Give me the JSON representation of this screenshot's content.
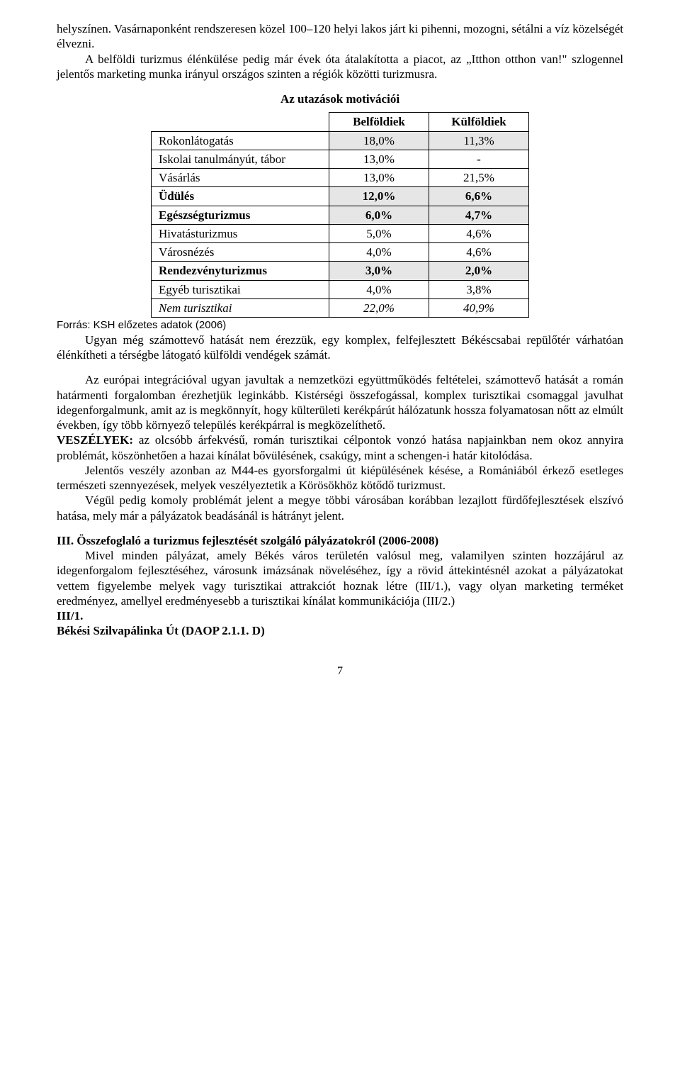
{
  "para1": "helyszínen. Vasárnaponként rendszeresen közel 100–120 helyi lakos járt ki pihenni, mozogni, sétálni a víz közelségét élvezni.",
  "para2": "A belföldi turizmus élénkülése pedig már évek óta átalakította a piacot, az „Itthon otthon van!\" szlogennel jelentős marketing munka irányul országos szinten a régiók közötti turizmusra.",
  "table": {
    "title": "Az utazások motivációi",
    "headers": {
      "col1": "Belföldiek",
      "col2": "Külföldiek"
    },
    "rows": [
      {
        "label": "Rokonlátogatás",
        "v1": "18,0%",
        "v2": "11,3%",
        "shade": true,
        "bold": false,
        "italic": false
      },
      {
        "label": "Iskolai tanulmányút, tábor",
        "v1": "13,0%",
        "v2": "-",
        "shade": false,
        "bold": false,
        "italic": false
      },
      {
        "label": "Vásárlás",
        "v1": "13,0%",
        "v2": "21,5%",
        "shade": false,
        "bold": false,
        "italic": false
      },
      {
        "label": "Üdülés",
        "v1": "12,0%",
        "v2": "6,6%",
        "shade": true,
        "bold": true,
        "italic": false
      },
      {
        "label": "Egészségturizmus",
        "v1": "6,0%",
        "v2": "4,7%",
        "shade": true,
        "bold": true,
        "italic": false
      },
      {
        "label": "Hivatásturizmus",
        "v1": "5,0%",
        "v2": "4,6%",
        "shade": false,
        "bold": false,
        "italic": false
      },
      {
        "label": "Városnézés",
        "v1": "4,0%",
        "v2": "4,6%",
        "shade": false,
        "bold": false,
        "italic": false
      },
      {
        "label": "Rendezvényturizmus",
        "v1": "3,0%",
        "v2": "2,0%",
        "shade": true,
        "bold": true,
        "italic": false
      },
      {
        "label": "Egyéb turisztikai",
        "v1": "4,0%",
        "v2": "3,8%",
        "shade": false,
        "bold": false,
        "italic": false
      },
      {
        "label": "Nem turisztikai",
        "v1": "22,0%",
        "v2": "40,9%",
        "shade": false,
        "bold": false,
        "italic": true
      }
    ],
    "source": "Forrás: KSH előzetes adatok (2006)"
  },
  "para3": "Ugyan még számottevő hatását nem érezzük, egy komplex, felfejlesztett Békéscsabai repülőtér várhatóan élénkítheti a térségbe látogató külföldi vendégek számát.",
  "para4": "Az európai integrációval ugyan javultak a nemzetközi együttműködés feltételei, számottevő hatását a román határmenti forgalomban érezhetjük leginkább. Kistérségi összefogással, komplex turisztikai csomaggal javulhat idegenforgalmunk, amit az is megkönnyít, hogy külterületi kerékpárút hálózatunk hossza folyamatosan nőtt az elmúlt években, így több környező település kerékpárral is megközelíthető.",
  "threats": {
    "label": "VESZÉLYEK:",
    "text": " az olcsóbb árfekvésű, román turisztikai célpontok vonzó hatása napjainkban nem okoz annyira problémát, köszönhetően a hazai kínálat bővülésének, csakúgy, mint a schengen-i határ kitolódása."
  },
  "para5": "Jelentős veszély azonban az M44-es gyorsforgalmi út kiépülésének késése, a Romániából érkező esetleges természeti szennyezések, melyek veszélyeztetik a Körösökhöz kötődő turizmust.",
  "para6": "Végül pedig komoly problémát jelent a megye többi városában korábban lezajlott fürdőfejlesztések elszívó hatása, mely már a pályázatok beadásánál is hátrányt jelent.",
  "section3": {
    "title": "III. Összefoglaló a turizmus fejlesztését szolgáló pályázatokról (2006-2008)",
    "body": "Mivel minden pályázat, amely Békés város területén valósul meg, valamilyen szinten hozzájárul az idegenforgalom fejlesztéséhez, városunk imázsának növeléséhez, így a rövid áttekintésnél azokat a pályázatokat vettem figyelembe melyek vagy turisztikai attrakciót hoznak létre (III/1.), vagy olyan marketing terméket eredményez, amellyel eredményesebb a turisztikai kínálat kommunikációja (III/2.)",
    "sub1_label": "III/1.",
    "sub1_title": "Békési Szilvapálinka Út (DAOP 2.1.1. D)"
  },
  "pagenum": "7"
}
